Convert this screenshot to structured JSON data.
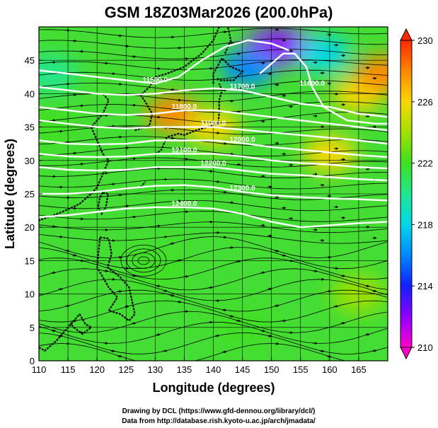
{
  "title": "GSM 18Z03Mar2026 (200.0hPa)",
  "xlabel": "Longitude (degrees)",
  "ylabel": "Latitude  (degrees)",
  "credits": [
    "Drawing by DCL (https://www.gfd-dennou.org/library/dcl/)",
    "Data from http://database.rish.kyoto-u.ac.jp/arch/jmadata/"
  ],
  "x_ticks": [
    "110",
    "115",
    "120",
    "125",
    "130",
    "135",
    "140",
    "145",
    "150",
    "155",
    "160",
    "165"
  ],
  "y_ticks": [
    "0",
    "5",
    "10",
    "15",
    "20",
    "25",
    "30",
    "35",
    "40",
    "45"
  ],
  "colorbar_ticks": [
    "210",
    "214",
    "218",
    "222",
    "226",
    "230"
  ],
  "contour_labels": [
    "11500.0",
    "11600.0",
    "11700.0",
    "11800.0",
    "11900.0",
    "12000.0",
    "12100.0",
    "12200.0",
    "12300.0",
    "12400.0"
  ],
  "chart_data": {
    "type": "heatmap",
    "title": "GSM 18Z03Mar2026 (200.0hPa)",
    "xlabel": "Longitude (degrees)",
    "ylabel": "Latitude  (degrees)",
    "xlim": [
      110,
      170
    ],
    "ylim": [
      0,
      50
    ],
    "color_range": [
      210,
      230
    ],
    "colorbar_ticks": [
      210,
      214,
      218,
      222,
      226,
      230
    ],
    "contours": [
      {
        "label": "11500.0",
        "points": [
          [
            110,
            43.5
          ],
          [
            115,
            43
          ],
          [
            120,
            42.5
          ],
          [
            125,
            42
          ],
          [
            130,
            41.5
          ],
          [
            134,
            42.5
          ],
          [
            138,
            45
          ],
          [
            142,
            47
          ],
          [
            146,
            48
          ],
          [
            150,
            47.5
          ],
          [
            153,
            46.5
          ]
        ]
      },
      {
        "label": "11600.0",
        "points": [
          [
            148,
            43
          ],
          [
            150,
            44.5
          ],
          [
            152,
            46
          ],
          [
            154,
            46
          ],
          [
            156,
            44
          ],
          [
            157,
            41
          ],
          [
            159,
            38
          ],
          [
            163,
            36
          ],
          [
            168,
            35.5
          ],
          [
            170,
            35.5
          ]
        ]
      },
      {
        "label": "11700.0",
        "points": [
          [
            110,
            41
          ],
          [
            115,
            40.5
          ],
          [
            120,
            40
          ],
          [
            125,
            39.8
          ],
          [
            130,
            40
          ],
          [
            135,
            40.5
          ],
          [
            140,
            40.8
          ],
          [
            145,
            40.5
          ],
          [
            150,
            39.5
          ],
          [
            155,
            38.5
          ],
          [
            160,
            38
          ],
          [
            165,
            37
          ],
          [
            170,
            36.5
          ]
        ]
      },
      {
        "label": "11800.0",
        "points": [
          [
            110,
            38
          ],
          [
            115,
            37.5
          ],
          [
            120,
            37
          ],
          [
            125,
            36.8
          ],
          [
            130,
            37
          ],
          [
            135,
            37.5
          ],
          [
            140,
            37.5
          ],
          [
            145,
            37
          ],
          [
            150,
            36.5
          ],
          [
            155,
            36
          ],
          [
            160,
            35.5
          ],
          [
            165,
            35
          ],
          [
            170,
            34.5
          ]
        ]
      },
      {
        "label": "11900.0",
        "points": [
          [
            110,
            36
          ],
          [
            115,
            35.5
          ],
          [
            120,
            35
          ],
          [
            125,
            34.8
          ],
          [
            130,
            35
          ],
          [
            135,
            35
          ],
          [
            140,
            35
          ],
          [
            145,
            34.6
          ],
          [
            150,
            34.2
          ],
          [
            155,
            33.8
          ],
          [
            160,
            33.4
          ],
          [
            165,
            33
          ],
          [
            170,
            32.5
          ]
        ]
      },
      {
        "label": "12000.0",
        "points": [
          [
            110,
            33
          ],
          [
            115,
            32.5
          ],
          [
            120,
            32.4
          ],
          [
            125,
            32.5
          ],
          [
            130,
            33
          ],
          [
            135,
            33
          ],
          [
            140,
            33
          ],
          [
            145,
            32.6
          ],
          [
            150,
            32
          ],
          [
            155,
            31.6
          ],
          [
            160,
            31.2
          ],
          [
            165,
            30.8
          ],
          [
            170,
            30.5
          ]
        ]
      },
      {
        "label": "12100.0",
        "points": [
          [
            110,
            31
          ],
          [
            115,
            30.6
          ],
          [
            120,
            30.5
          ],
          [
            125,
            30.6
          ],
          [
            130,
            31
          ],
          [
            135,
            31
          ],
          [
            140,
            31
          ],
          [
            145,
            30.6
          ],
          [
            150,
            30
          ],
          [
            155,
            29.6
          ],
          [
            160,
            29.4
          ],
          [
            165,
            29
          ],
          [
            170,
            28.8
          ]
        ]
      },
      {
        "label": "12200.0",
        "points": [
          [
            110,
            29
          ],
          [
            115,
            28.6
          ],
          [
            120,
            28.5
          ],
          [
            125,
            28.6
          ],
          [
            130,
            29
          ],
          [
            135,
            29
          ],
          [
            140,
            29
          ],
          [
            145,
            28.5
          ],
          [
            150,
            28
          ],
          [
            155,
            27.8
          ],
          [
            160,
            27.5
          ],
          [
            165,
            27.2
          ],
          [
            170,
            27
          ]
        ]
      },
      {
        "label": "12300.0",
        "points": [
          [
            110,
            25
          ],
          [
            115,
            25
          ],
          [
            120,
            25.3
          ],
          [
            125,
            25.8
          ],
          [
            130,
            26.2
          ],
          [
            135,
            26.3
          ],
          [
            140,
            26
          ],
          [
            145,
            25.3
          ],
          [
            150,
            24.8
          ],
          [
            155,
            24.5
          ],
          [
            160,
            24.3
          ],
          [
            165,
            24.2
          ],
          [
            170,
            24
          ]
        ]
      },
      {
        "label": "12400.0",
        "points": [
          [
            110,
            21.5
          ],
          [
            115,
            21.8
          ],
          [
            120,
            22.3
          ],
          [
            125,
            22.8
          ],
          [
            130,
            23
          ],
          [
            135,
            23
          ],
          [
            140,
            22.8
          ],
          [
            145,
            22
          ],
          [
            150,
            20.8
          ],
          [
            155,
            20
          ],
          [
            160,
            20.3
          ],
          [
            165,
            20.6
          ],
          [
            170,
            20.8
          ]
        ]
      }
    ],
    "temperature_features": [
      {
        "lon": 150,
        "lat": 47,
        "value": 211
      },
      {
        "lon": 153,
        "lat": 47,
        "value": 212
      },
      {
        "lon": 146,
        "lat": 44,
        "value": 215
      },
      {
        "lon": 159,
        "lat": 46,
        "value": 218
      },
      {
        "lon": 165,
        "lat": 40,
        "value": 226
      },
      {
        "lon": 169,
        "lat": 43,
        "value": 228
      },
      {
        "lon": 133,
        "lat": 37,
        "value": 228
      },
      {
        "lon": 140,
        "lat": 35,
        "value": 226
      },
      {
        "lon": 160,
        "lat": 31,
        "value": 226
      },
      {
        "lon": 112,
        "lat": 43,
        "value": 219
      },
      {
        "lon": 112,
        "lat": 35,
        "value": 221
      },
      {
        "lon": 130,
        "lat": 14,
        "value": 222
      },
      {
        "lon": 145,
        "lat": 5,
        "value": 222
      },
      {
        "lon": 165,
        "lat": 10,
        "value": 223
      }
    ]
  }
}
